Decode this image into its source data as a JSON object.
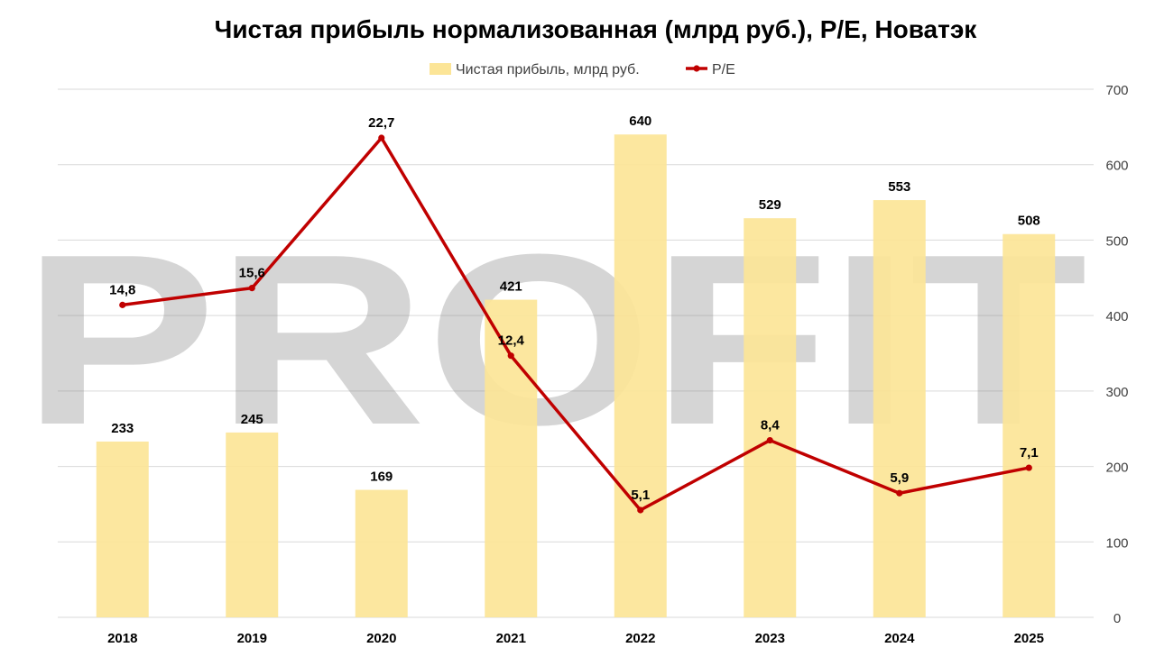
{
  "chart_data": {
    "type": "bar",
    "title": "Чистая прибыль нормализованная (млрд руб.), P/E, Новатэк",
    "categories": [
      "2018",
      "2019",
      "2020",
      "2021",
      "2022",
      "2023",
      "2024",
      "2025"
    ],
    "series": [
      {
        "name": "Чистая прибыль, млрд руб.",
        "type": "bar",
        "axis": "right",
        "color": "#FCE597",
        "values": [
          233,
          245,
          169,
          421,
          640,
          529,
          553,
          508
        ],
        "labels": [
          "233",
          "245",
          "169",
          "421",
          "640",
          "529",
          "553",
          "508"
        ]
      },
      {
        "name": "P/E",
        "type": "line",
        "color": "#C00000",
        "values": [
          14.8,
          15.6,
          22.7,
          12.4,
          5.1,
          8.4,
          5.9,
          7.1
        ],
        "labels": [
          "14,8",
          "15,6",
          "22,7",
          "12,4",
          "5,1",
          "8,4",
          "5,9",
          "7,1"
        ]
      }
    ],
    "right_axis": {
      "ylim": [
        0,
        700
      ],
      "ticks": [
        "0",
        "100",
        "200",
        "300",
        "400",
        "500",
        "600",
        "700"
      ]
    },
    "grid": true,
    "legend": "top-center",
    "watermark": "PROFIT"
  }
}
